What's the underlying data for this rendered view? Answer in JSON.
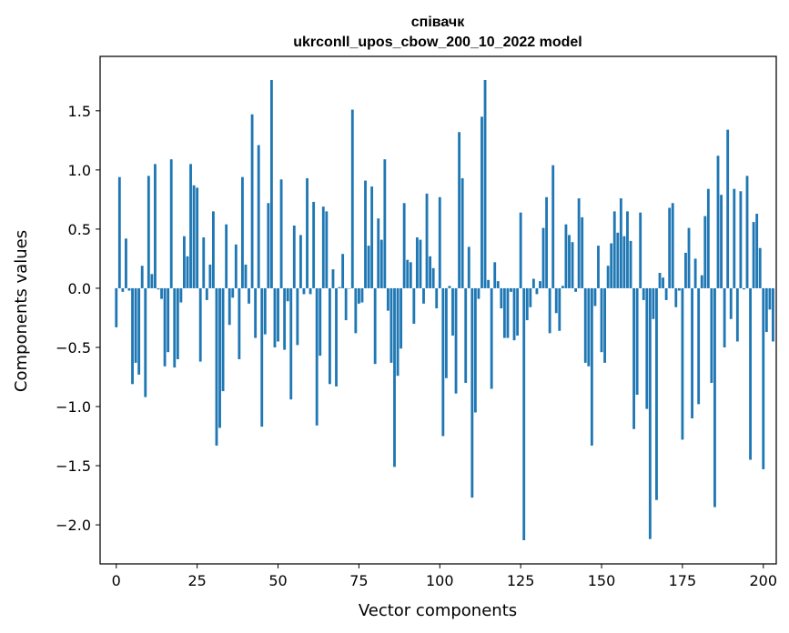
{
  "chart_data": {
    "type": "bar",
    "title": "співачк",
    "subtitle": "ukrconll_upos_cbow_200_10_2022 model",
    "xlabel": "Vector components",
    "ylabel": "Components values",
    "xlim": [
      -5,
      204
    ],
    "ylim": [
      -2.33,
      1.96
    ],
    "xticks": [
      0,
      25,
      50,
      75,
      100,
      125,
      150,
      175,
      200
    ],
    "yticks": [
      -2.0,
      -1.5,
      -1.0,
      -0.5,
      0.0,
      0.5,
      1.0,
      1.5
    ],
    "ytick_labels": [
      "−2.0",
      "−1.5",
      "−1.0",
      "−0.5",
      "0.0",
      "0.5",
      "1.0",
      "1.5"
    ],
    "bar_color": "#1f77b4",
    "grid": false,
    "values": [
      -0.33,
      0.94,
      -0.03,
      0.42,
      -0.02,
      -0.81,
      -0.63,
      -0.73,
      0.19,
      -0.92,
      0.95,
      0.12,
      1.05,
      -0.01,
      -0.09,
      -0.66,
      -0.54,
      1.09,
      -0.67,
      -0.6,
      -0.12,
      0.44,
      0.27,
      1.05,
      0.87,
      0.85,
      -0.62,
      0.43,
      -0.1,
      0.2,
      0.65,
      -1.33,
      -1.18,
      -0.87,
      0.54,
      -0.31,
      -0.08,
      0.37,
      -0.6,
      0.94,
      0.2,
      -0.13,
      1.47,
      -0.42,
      1.21,
      -1.17,
      -0.39,
      0.72,
      1.76,
      -0.5,
      -0.45,
      0.92,
      -0.52,
      -0.11,
      -0.94,
      0.53,
      -0.48,
      0.45,
      -0.05,
      0.93,
      -0.05,
      0.73,
      -1.16,
      -0.57,
      0.69,
      0.65,
      -0.81,
      0.16,
      -0.83,
      0.01,
      0.29,
      -0.27,
      0.0,
      1.51,
      -0.38,
      -0.13,
      -0.12,
      0.91,
      0.36,
      0.86,
      -0.64,
      0.59,
      0.41,
      1.09,
      -0.19,
      -0.63,
      -1.51,
      -0.74,
      -0.51,
      0.72,
      0.24,
      0.22,
      -0.3,
      0.43,
      0.41,
      -0.13,
      0.8,
      0.27,
      0.17,
      -0.17,
      0.77,
      -1.25,
      -0.76,
      0.02,
      -0.4,
      -0.89,
      1.32,
      0.93,
      -0.8,
      0.35,
      -1.77,
      -1.05,
      -0.09,
      1.45,
      1.76,
      0.07,
      -0.85,
      0.22,
      0.06,
      -0.17,
      -0.42,
      -0.42,
      -0.03,
      -0.44,
      -0.4,
      0.64,
      -2.13,
      -0.27,
      -0.16,
      0.08,
      -0.05,
      0.06,
      0.51,
      0.77,
      -0.38,
      1.04,
      -0.21,
      -0.36,
      0.02,
      0.54,
      0.45,
      0.39,
      -0.03,
      0.76,
      0.6,
      -0.63,
      -0.66,
      -1.33,
      -0.15,
      0.36,
      -0.54,
      -0.63,
      0.19,
      0.38,
      0.65,
      0.47,
      0.76,
      0.44,
      0.65,
      0.4,
      -1.19,
      -0.9,
      0.64,
      -0.1,
      -1.02,
      -2.12,
      -0.26,
      -1.79,
      0.13,
      0.09,
      -0.1,
      0.68,
      0.72,
      -0.16,
      -0.02,
      -1.28,
      0.3,
      0.51,
      -1.1,
      0.25,
      -0.98,
      0.11,
      0.61,
      0.84,
      -0.8,
      -1.85,
      1.12,
      0.79,
      -0.5,
      1.34,
      -0.26,
      0.84,
      -0.45,
      0.82,
      -0.01,
      0.95,
      -1.45,
      0.56,
      0.63,
      0.34,
      -1.53,
      -0.37,
      -0.18,
      -0.45
    ]
  }
}
